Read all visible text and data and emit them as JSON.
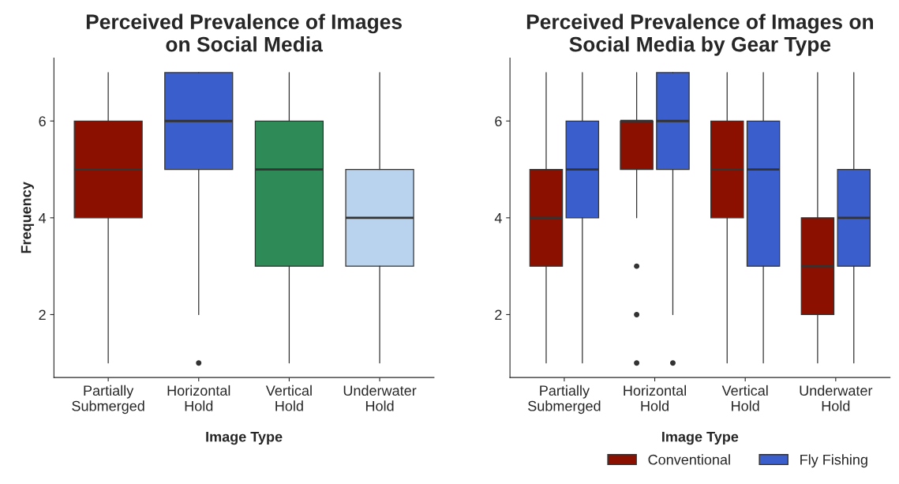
{
  "chart_data": [
    {
      "type": "box",
      "title": "Perceived Prevalence of Images\non Social Media",
      "xlabel": "Image Type",
      "ylabel": "Frequency",
      "categories": [
        "Partially\nSubmerged",
        "Horizontal\nHold",
        "Vertical\nHold",
        "Underwater\nHold"
      ],
      "ylim": [
        0.7,
        7.3
      ],
      "yticks": [
        2,
        4,
        6
      ],
      "colors": [
        "#8b1000",
        "#3a5fcd",
        "#2e8b57",
        "#b9d3ee"
      ],
      "boxes": [
        {
          "low": 1,
          "q1": 4,
          "median": 5,
          "q3": 6,
          "high": 7
        },
        {
          "low": 2,
          "q1": 5,
          "median": 6,
          "q3": 7,
          "high": 7,
          "outliers": [
            1
          ]
        },
        {
          "low": 1,
          "q1": 3,
          "median": 5,
          "q3": 6,
          "high": 7
        },
        {
          "low": 1,
          "q1": 3,
          "median": 4,
          "q3": 5,
          "high": 7
        }
      ]
    },
    {
      "type": "box",
      "title": "Perceived Prevalence of Images on\nSocial Media by Gear Type",
      "xlabel": "Image Type",
      "categories": [
        "Partially\nSubmerged",
        "Horizontal\nHold",
        "Vertical\nHold",
        "Underwater\nHold"
      ],
      "ylim": [
        0.7,
        7.3
      ],
      "yticks": [
        2,
        4,
        6
      ],
      "legend": "bottom",
      "series": [
        {
          "name": "Conventional",
          "color": "#8b1000",
          "boxes": [
            {
              "low": 1,
              "q1": 3,
              "median": 4,
              "q3": 5,
              "high": 7
            },
            {
              "low": 4,
              "q1": 5,
              "median": 6,
              "q3": 6,
              "high": 7,
              "outliers": [
                3,
                2,
                1
              ]
            },
            {
              "low": 1,
              "q1": 4,
              "median": 5,
              "q3": 6,
              "high": 7
            },
            {
              "low": 1,
              "q1": 2,
              "median": 3,
              "q3": 4,
              "high": 7
            }
          ]
        },
        {
          "name": "Fly Fishing",
          "color": "#3a5fcd",
          "boxes": [
            {
              "low": 1,
              "q1": 4,
              "median": 5,
              "q3": 6,
              "high": 7
            },
            {
              "low": 2,
              "q1": 5,
              "median": 6,
              "q3": 7,
              "high": 7,
              "outliers": [
                1
              ]
            },
            {
              "low": 1,
              "q1": 3,
              "median": 5,
              "q3": 6,
              "high": 7
            },
            {
              "low": 1,
              "q1": 3,
              "median": 4,
              "q3": 5,
              "high": 7
            }
          ]
        }
      ]
    }
  ]
}
